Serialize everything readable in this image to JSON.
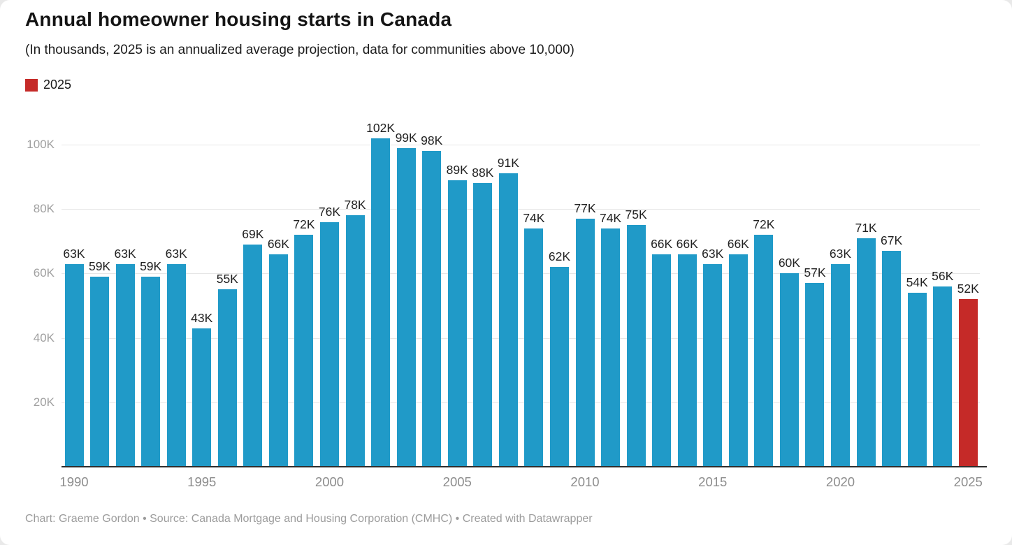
{
  "header": {
    "title": "Annual homeowner housing starts in Canada",
    "subtitle": "(In thousands, 2025 is an annualized average projection, data for communities above 10,000)"
  },
  "legend": {
    "items": [
      {
        "label": "2025",
        "color": "#c52a28"
      }
    ]
  },
  "colors": {
    "bar": "#209ac8",
    "highlight": "#c52a28",
    "gridline": "#e6e6e6",
    "baseline": "#2e2e2e",
    "value_label": "#212121",
    "axis_label": "#9c9c9c"
  },
  "chart_data": {
    "type": "bar",
    "title": "Annual homeowner housing starts in Canada",
    "subtitle": "(In thousands, 2025 is an annualized average projection, data for communities above 10,000)",
    "unit_suffix": "K",
    "categories": [
      1990,
      1991,
      1992,
      1993,
      1994,
      1995,
      1996,
      1997,
      1998,
      1999,
      2000,
      2001,
      2002,
      2003,
      2004,
      2005,
      2006,
      2007,
      2008,
      2009,
      2010,
      2011,
      2012,
      2013,
      2014,
      2015,
      2016,
      2017,
      2018,
      2019,
      2020,
      2021,
      2022,
      2023,
      2024,
      2025
    ],
    "values": [
      63,
      59,
      63,
      59,
      63,
      43,
      55,
      69,
      66,
      72,
      76,
      78,
      102,
      99,
      98,
      89,
      88,
      91,
      74,
      62,
      77,
      74,
      75,
      66,
      66,
      63,
      66,
      72,
      60,
      57,
      63,
      71,
      67,
      54,
      56,
      52
    ],
    "highlight_category": 2025,
    "y_ticks": [
      20,
      40,
      60,
      80,
      100
    ],
    "x_ticks": [
      1990,
      1995,
      2000,
      2005,
      2010,
      2015,
      2020,
      2025
    ],
    "ylim": [
      0,
      109
    ],
    "grid": true,
    "legend_position": "top-left",
    "xlabel": "",
    "ylabel": ""
  },
  "footer": {
    "text": "Chart: Graeme Gordon • Source: Canada Mortgage and Housing Corporation (CMHC) • Created with Datawrapper"
  }
}
